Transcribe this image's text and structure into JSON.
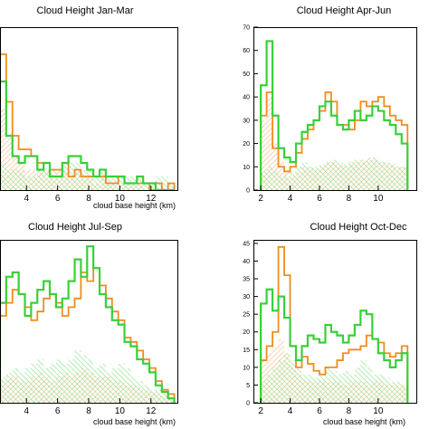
{
  "colors": {
    "orange": "#f08c1e",
    "green": "#39d039",
    "orange_hatch": "#f5b478",
    "green_hatch": "#7fe07f"
  },
  "chart_data": [
    {
      "type": "histogram",
      "title": "Cloud Height Jan-Mar",
      "xlabel": "cloud base height (km)",
      "ylabel": "",
      "x_ticks": [
        "4",
        "6",
        "8",
        "10",
        "12"
      ],
      "y_ticks": [],
      "xlim": [
        2.3,
        13.7
      ],
      "ylim": [
        0,
        24
      ],
      "grid": false,
      "bin_start": 2.3,
      "bin_width": 0.4,
      "series": [
        {
          "style": "orange-line",
          "values": [
            20,
            13,
            8,
            6,
            6,
            5,
            4,
            4,
            3,
            3,
            4,
            2,
            3,
            2,
            2,
            2,
            2,
            1,
            1,
            2,
            1,
            1,
            1,
            1,
            0,
            1,
            0,
            1
          ]
        },
        {
          "style": "green-line",
          "values": [
            16,
            8,
            5,
            4,
            5,
            5,
            3,
            4,
            2,
            2,
            4,
            5,
            5,
            4,
            3,
            2,
            3,
            2,
            2,
            2,
            1,
            1,
            2,
            1,
            1,
            0,
            0,
            0
          ]
        },
        {
          "style": "orange-hatch",
          "values": [
            12,
            8,
            5,
            4,
            3,
            3,
            3,
            3,
            2,
            3,
            3,
            2,
            3,
            2,
            2,
            1,
            2,
            1,
            1,
            1,
            1,
            1,
            1,
            0,
            0,
            0,
            0,
            0
          ]
        },
        {
          "style": "green-hatch",
          "values": [
            4,
            3,
            3,
            3,
            2,
            2,
            3,
            3,
            3,
            2,
            4,
            4,
            4,
            3,
            3,
            2,
            3,
            2,
            2,
            2,
            2,
            2,
            2,
            1,
            1,
            2,
            2,
            1
          ]
        }
      ]
    },
    {
      "type": "histogram",
      "title": "Cloud Height Apr-Jun",
      "xlabel": "",
      "ylabel": "",
      "x_ticks": [
        "2",
        "4",
        "6",
        "8",
        "10"
      ],
      "y_ticks": [
        "0",
        "10",
        "20",
        "30",
        "40",
        "50",
        "60",
        "70"
      ],
      "xlim": [
        1.5,
        12.6
      ],
      "ylim": [
        0,
        70
      ],
      "grid": false,
      "bin_start": 2.0,
      "bin_width": 0.4,
      "series": [
        {
          "style": "orange-line",
          "values": [
            32,
            42,
            18,
            10,
            8,
            10,
            16,
            22,
            26,
            30,
            34,
            42,
            38,
            28,
            28,
            26,
            30,
            38,
            36,
            38,
            40,
            36,
            32,
            30,
            28
          ]
        },
        {
          "style": "green-line",
          "values": [
            45,
            64,
            32,
            18,
            14,
            12,
            20,
            25,
            28,
            30,
            36,
            38,
            32,
            28,
            26,
            30,
            34,
            30,
            32,
            36,
            34,
            30,
            28,
            24,
            20
          ]
        },
        {
          "style": "orange-hatch",
          "values": [
            30,
            40,
            20,
            12,
            8,
            6,
            8,
            10,
            10,
            9,
            10,
            12,
            12,
            11,
            10,
            12,
            12,
            13,
            14,
            13,
            12,
            12,
            11,
            10,
            10
          ]
        },
        {
          "style": "green-hatch",
          "values": [
            8,
            10,
            8,
            6,
            6,
            8,
            10,
            12,
            10,
            10,
            11,
            12,
            13,
            12,
            11,
            12,
            13,
            12,
            13,
            14,
            12,
            12,
            11,
            10,
            10
          ]
        }
      ]
    },
    {
      "type": "histogram",
      "title": "Cloud Height Jul-Sep",
      "xlabel": "cloud base height (km)",
      "ylabel": "",
      "x_ticks": [
        "4",
        "6",
        "8",
        "10",
        "12"
      ],
      "y_ticks": [],
      "xlim": [
        2.3,
        13.7
      ],
      "ylim": [
        0,
        75
      ],
      "grid": false,
      "bin_start": 2.3,
      "bin_width": 0.4,
      "series": [
        {
          "style": "orange-line",
          "values": [
            40,
            46,
            52,
            50,
            44,
            38,
            42,
            48,
            50,
            46,
            40,
            44,
            48,
            60,
            56,
            62,
            54,
            48,
            42,
            38,
            30,
            28,
            24,
            20,
            16,
            10,
            6,
            4
          ]
        },
        {
          "style": "green-line",
          "values": [
            46,
            58,
            60,
            50,
            40,
            46,
            52,
            56,
            50,
            44,
            48,
            56,
            66,
            58,
            72,
            62,
            50,
            44,
            38,
            36,
            28,
            26,
            20,
            18,
            14,
            8,
            5,
            2
          ]
        },
        {
          "style": "orange-hatch",
          "values": [
            10,
            12,
            12,
            10,
            10,
            12,
            14,
            12,
            10,
            12,
            14,
            12,
            14,
            16,
            14,
            12,
            12,
            12,
            10,
            10,
            8,
            8,
            7,
            6,
            5,
            4,
            3,
            2
          ]
        },
        {
          "style": "green-hatch",
          "values": [
            12,
            14,
            16,
            14,
            16,
            18,
            20,
            16,
            18,
            20,
            18,
            20,
            24,
            22,
            20,
            16,
            18,
            14,
            16,
            18,
            16,
            12,
            10,
            8,
            6,
            6,
            4,
            2
          ]
        }
      ]
    },
    {
      "type": "histogram",
      "title": "Cloud Height Oct-Dec",
      "xlabel": "cloud base height (km)",
      "ylabel": "",
      "x_ticks": [
        "2",
        "4",
        "6",
        "8",
        "10"
      ],
      "y_ticks": [
        "0",
        "5",
        "10",
        "15",
        "20",
        "25",
        "30",
        "35",
        "40",
        "45"
      ],
      "xlim": [
        1.5,
        12.6
      ],
      "ylim": [
        0,
        46
      ],
      "grid": false,
      "bin_start": 2.0,
      "bin_width": 0.4,
      "series": [
        {
          "style": "orange-line",
          "values": [
            12,
            16,
            20,
            44,
            36,
            16,
            10,
            13,
            11,
            9,
            8,
            10,
            10,
            12,
            14,
            15,
            15,
            16,
            19,
            18,
            17,
            14,
            13,
            14,
            16
          ]
        },
        {
          "style": "green-line",
          "values": [
            28,
            32,
            26,
            30,
            24,
            16,
            12,
            16,
            19,
            18,
            17,
            22,
            20,
            19,
            17,
            19,
            22,
            26,
            25,
            18,
            14,
            12,
            10,
            12,
            14
          ]
        },
        {
          "style": "orange-hatch",
          "values": [
            12,
            14,
            16,
            18,
            14,
            10,
            8,
            6,
            6,
            6,
            6,
            6,
            6,
            6,
            5,
            6,
            6,
            6,
            5,
            6,
            6,
            5,
            5,
            5,
            5
          ]
        },
        {
          "style": "green-hatch",
          "values": [
            6,
            8,
            10,
            12,
            14,
            12,
            10,
            8,
            8,
            7,
            8,
            10,
            9,
            8,
            9,
            8,
            10,
            12,
            10,
            8,
            8,
            7,
            6,
            6,
            5
          ]
        }
      ]
    }
  ]
}
